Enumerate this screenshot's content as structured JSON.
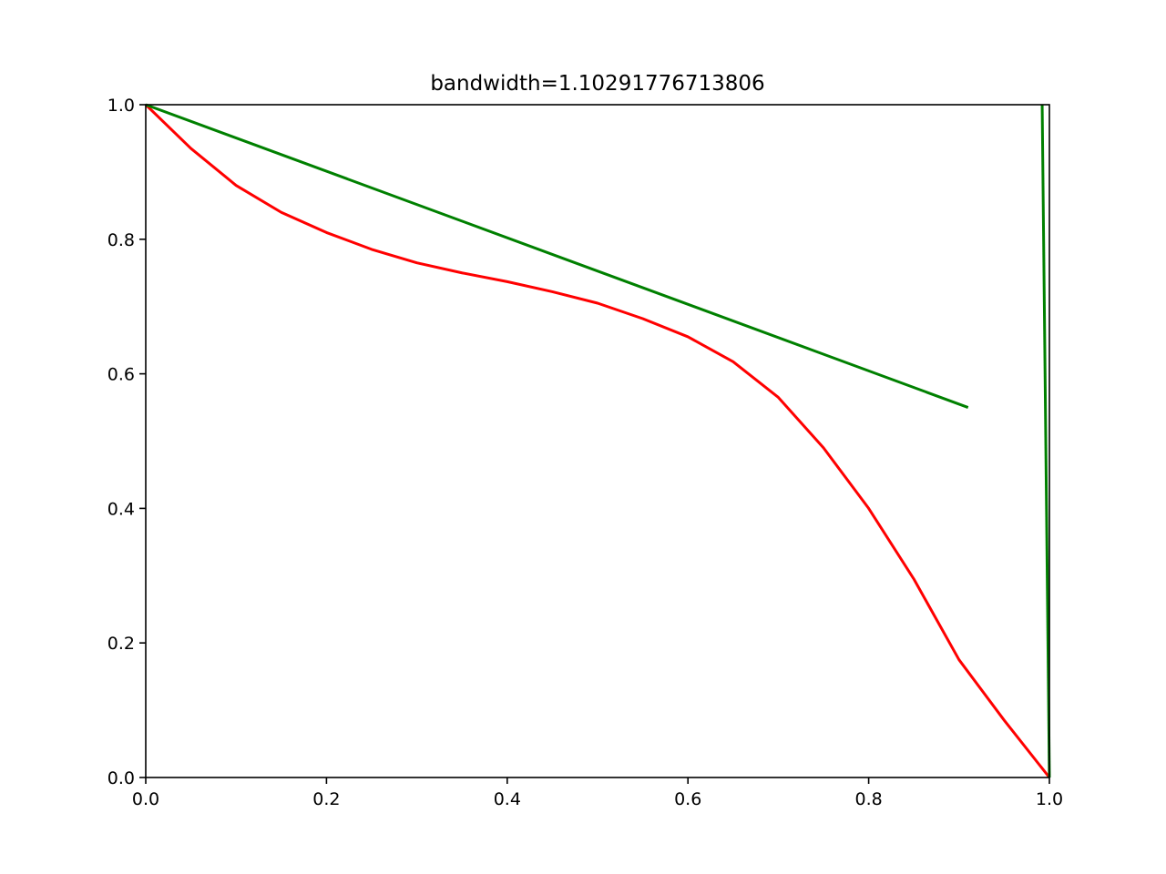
{
  "chart_data": {
    "type": "line",
    "title": "bandwidth=1.10291776713806",
    "xlabel": "",
    "ylabel": "",
    "xlim": [
      0.0,
      1.0
    ],
    "ylim": [
      0.0,
      1.0
    ],
    "x_ticks": [
      "0.0",
      "0.2",
      "0.4",
      "0.6",
      "0.8",
      "1.0"
    ],
    "y_ticks": [
      "0.0",
      "0.2",
      "0.4",
      "0.6",
      "0.8",
      "1.0"
    ],
    "grid": false,
    "legend": "none",
    "series": [
      {
        "color": "#ff0000",
        "x": [
          0.0,
          0.05,
          0.1,
          0.15,
          0.2,
          0.25,
          0.3,
          0.35,
          0.4,
          0.45,
          0.5,
          0.55,
          0.6,
          0.65,
          0.7,
          0.75,
          0.8,
          0.85,
          0.9,
          0.95,
          1.0
        ],
        "y": [
          1.0,
          0.935,
          0.88,
          0.84,
          0.81,
          0.785,
          0.765,
          0.75,
          0.737,
          0.722,
          0.705,
          0.682,
          0.655,
          0.618,
          0.565,
          0.49,
          0.4,
          0.295,
          0.175,
          0.085,
          0.0
        ]
      },
      {
        "color": "#008000",
        "x": [
          0.0,
          0.91
        ],
        "y": [
          1.0,
          0.55
        ]
      },
      {
        "color": "#008000",
        "x": [
          0.992,
          1.0
        ],
        "y": [
          1.0,
          0.0
        ]
      }
    ]
  }
}
